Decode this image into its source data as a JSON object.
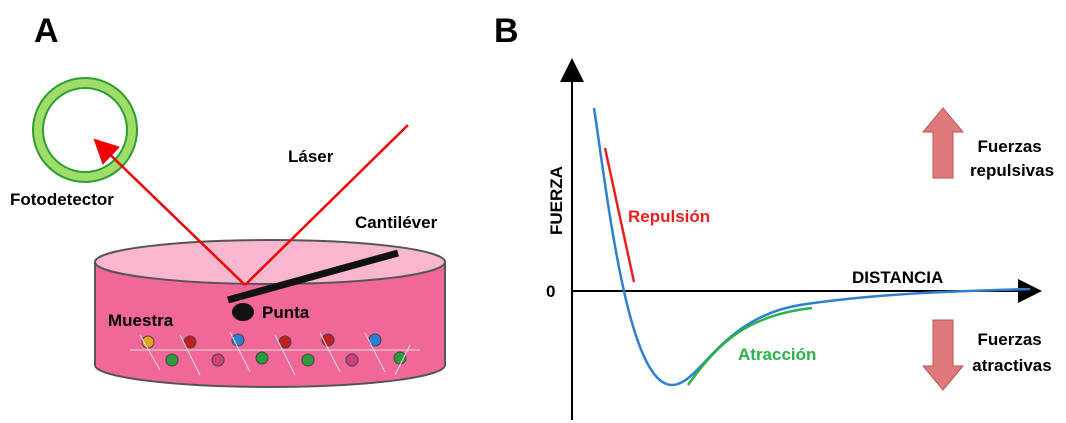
{
  "panel_a": {
    "label": "A",
    "fotodetector": "Fotodetector",
    "laser": "Láser",
    "cantilever": "Cantiléver",
    "muestra": "Muestra",
    "punta": "Punta"
  },
  "panel_b": {
    "label": "B",
    "y_axis": "FUERZA",
    "x_axis": "DISTANCIA",
    "zero": "0",
    "repulsion": "Repulsión",
    "atraccion": "Atracción",
    "repulsive_forces": [
      "Fuerzas",
      "repulsivas"
    ],
    "attractive_forces": [
      "Fuerzas",
      "atractivas"
    ]
  }
}
